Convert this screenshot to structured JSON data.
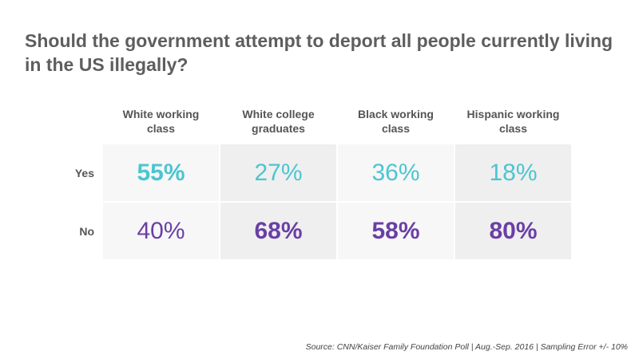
{
  "title": "Should the government attempt to deport all people currently living in the US illegally?",
  "source": "Source: CNN/Kaiser Family Foundation Poll | Aug.-Sep. 2016 | Sampling Error +/- 10%",
  "colors": {
    "yes": "#4cc5d0",
    "no": "#6a3fa5"
  },
  "chart_data": {
    "type": "table",
    "title": "Should the government attempt to deport all people currently living in the US illegally?",
    "columns": [
      "White working class",
      "White college graduates",
      "Black working class",
      "Hispanic working class"
    ],
    "rows": [
      {
        "label": "Yes",
        "values": [
          "55%",
          "27%",
          "36%",
          "18%"
        ],
        "bold": [
          true,
          false,
          false,
          false
        ]
      },
      {
        "label": "No",
        "values": [
          "40%",
          "68%",
          "58%",
          "80%"
        ],
        "bold": [
          false,
          true,
          true,
          true
        ]
      }
    ]
  }
}
